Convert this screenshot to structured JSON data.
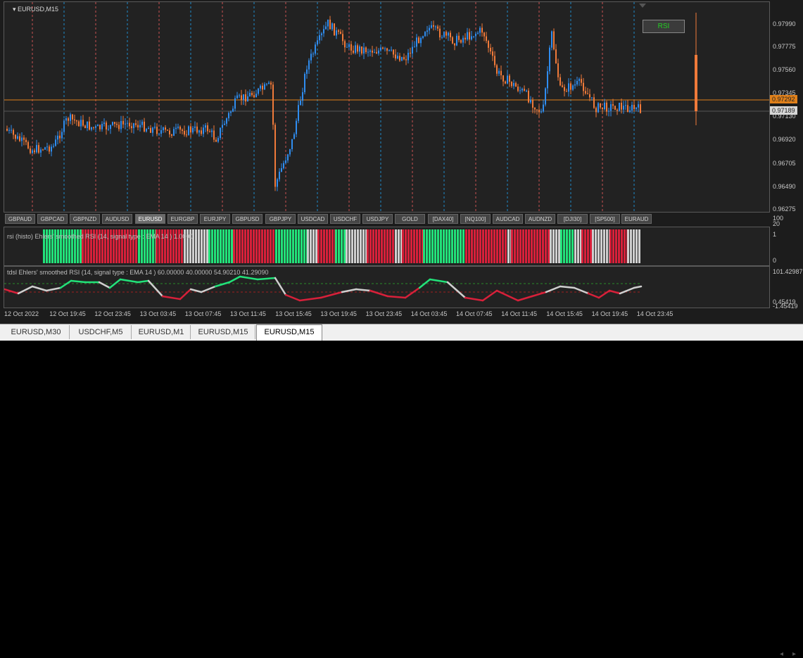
{
  "window": {
    "title": "EURUSD,M15"
  },
  "main_chart": {
    "price_labels": [
      "0.97990",
      "0.97775",
      "0.97560",
      "0.97345",
      "0.97130",
      "0.96920",
      "0.96705",
      "0.96490",
      "0.96275"
    ],
    "last_price": "0.97189",
    "level_price": "0.97292",
    "rsi_button": "RSI"
  },
  "symbols": [
    "GBPAUD",
    "GBPCAD",
    "GBPNZD",
    "AUDUSD",
    "EURUSD",
    "EURGBP",
    "EURJPY",
    "GBPUSD",
    "GBPJPY",
    "USDCAD",
    "USDCHF",
    "USDJPY",
    "GOLD",
    "[DAX40]",
    "[NQ100]",
    "AUDCAD",
    "AUDNZD",
    "[DJI30]",
    "[SP500]",
    "EURAUD"
  ],
  "active_symbol": "EURUSD",
  "histo_panel": {
    "title": "rsi (histo) Ehlers' smoothed RSI (14, signal type : EMA  14 ) 1.0000",
    "labels": [
      "100",
      "20",
      "1",
      "0"
    ]
  },
  "rsi_panel": {
    "title": "tdsl Ehlers' smoothed RSI (14, signal type : EMA  14 ) 60.00000 40.00000 54.90210 41.29090",
    "labels": [
      "101.42987",
      "0.45419",
      "-1.45419"
    ]
  },
  "time_labels": [
    "12 Oct 2022",
    "12 Oct 19:45",
    "12 Oct 23:45",
    "13 Oct 03:45",
    "13 Oct 07:45",
    "13 Oct 11:45",
    "13 Oct 15:45",
    "13 Oct 19:45",
    "13 Oct 23:45",
    "14 Oct 03:45",
    "14 Oct 07:45",
    "14 Oct 11:45",
    "14 Oct 15:45",
    "14 Oct 19:45",
    "14 Oct 23:45"
  ],
  "tabs": [
    "EURUSD,M30",
    "USDCHF,M5",
    "EURUSD,M1",
    "EURUSD,M15",
    "EURUSD,M15"
  ],
  "active_tab_index": 4,
  "colors": {
    "bull": "#2f8df0",
    "bear": "#f07a3a",
    "level": "#e0801a",
    "rsi_up": "#22e27a",
    "rsi_down": "#d8203a",
    "rsi_flat": "#cfcfcf",
    "sep_blue": "#1e9be8",
    "sep_red": "#e85a5a"
  }
}
